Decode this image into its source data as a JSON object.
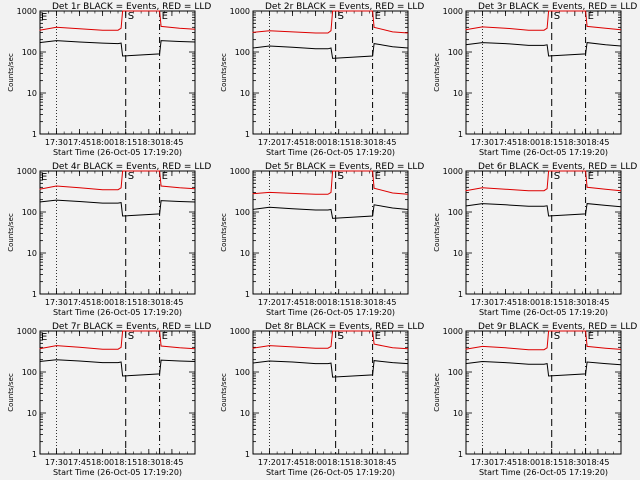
{
  "chart_data": [
    {
      "type": "line",
      "title": "Det 1r BLACK = Events, RED = LLD",
      "xlabel": "Start Time (26-Oct-05 17:19:20)",
      "ylabel": "Counts/sec",
      "ylim": [
        1,
        1000
      ],
      "y_scale": "log",
      "y_ticks": [
        "1",
        "10",
        "100",
        "1000"
      ],
      "x_ticks": [
        "17:30",
        "17:45",
        "18:00",
        "18:15",
        "18:30",
        "18:45"
      ],
      "markers": {
        "S": "18:15",
        "E": "18:37"
      },
      "begin_marker": "E",
      "x": [
        "17:19",
        "17:30",
        "17:45",
        "18:00",
        "18:10",
        "18:12",
        "18:13",
        "18:37",
        "18:38",
        "18:50",
        "19:00"
      ],
      "series": [
        {
          "color": "#dd0000",
          "values": [
            340,
            400,
            370,
            340,
            340,
            380,
            1000,
            1000,
            420,
            380,
            360
          ]
        },
        {
          "color": "#000000",
          "values": [
            170,
            190,
            175,
            165,
            160,
            165,
            80,
            90,
            190,
            180,
            175
          ]
        }
      ]
    },
    {
      "type": "line",
      "title": "Det 2r BLACK = Events, RED = LLD",
      "xlabel": "Start Time (26-Oct-05 17:19:20)",
      "ylabel": "Counts/sec",
      "ylim": [
        1,
        1000
      ],
      "y_scale": "log",
      "y_ticks": [
        "1",
        "10",
        "100",
        "1000"
      ],
      "x_ticks": [
        "17:20",
        "17:45",
        "18:00",
        "18:15",
        "18:30",
        "18:45"
      ],
      "markers": {
        "S": "18:13",
        "E": "18:37"
      },
      "begin_marker": "",
      "x": [
        "17:19",
        "17:30",
        "17:45",
        "18:00",
        "18:08",
        "18:10",
        "18:11",
        "18:37",
        "18:38",
        "18:50",
        "19:00"
      ],
      "series": [
        {
          "color": "#dd0000",
          "values": [
            300,
            330,
            310,
            290,
            290,
            330,
            1000,
            1000,
            400,
            310,
            290
          ]
        },
        {
          "color": "#000000",
          "values": [
            125,
            140,
            130,
            120,
            120,
            125,
            70,
            80,
            160,
            135,
            125
          ]
        }
      ]
    },
    {
      "type": "line",
      "title": "Det 3r BLACK = Events, RED = LLD",
      "xlabel": "Start Time (26-Oct-05 17:19:20)",
      "ylabel": "Counts/sec",
      "ylim": [
        1,
        1000
      ],
      "y_scale": "log",
      "y_ticks": [
        "1",
        "10",
        "100",
        "1000"
      ],
      "x_ticks": [
        "17:30",
        "17:45",
        "18:00",
        "18:15",
        "18:30",
        "18:45"
      ],
      "markers": {
        "S": "18:15",
        "E": "18:37"
      },
      "begin_marker": "",
      "x": [
        "17:19",
        "17:30",
        "17:45",
        "18:00",
        "18:10",
        "18:12",
        "18:13",
        "18:37",
        "18:38",
        "18:50",
        "19:00"
      ],
      "series": [
        {
          "color": "#dd0000",
          "values": [
            350,
            410,
            380,
            340,
            340,
            380,
            1000,
            1000,
            420,
            380,
            350
          ]
        },
        {
          "color": "#000000",
          "values": [
            150,
            170,
            160,
            145,
            145,
            150,
            80,
            90,
            170,
            150,
            140
          ]
        }
      ]
    },
    {
      "type": "line",
      "title": "Det 4r BLACK = Events, RED = LLD",
      "xlabel": "Start Time (26-Oct-05 17:19:20)",
      "ylabel": "Counts/sec",
      "ylim": [
        1,
        1000
      ],
      "y_scale": "log",
      "y_ticks": [
        "1",
        "10",
        "100",
        "1000"
      ],
      "x_ticks": [
        "17:30",
        "17:45",
        "18:00",
        "18:15",
        "18:30",
        "18:45"
      ],
      "markers": {
        "S": "18:15",
        "E": "18:37"
      },
      "begin_marker": "E",
      "x": [
        "17:19",
        "17:30",
        "17:45",
        "18:00",
        "18:10",
        "18:12",
        "18:13",
        "18:37",
        "18:38",
        "18:50",
        "19:00"
      ],
      "series": [
        {
          "color": "#dd0000",
          "values": [
            360,
            430,
            390,
            350,
            350,
            390,
            1000,
            1000,
            430,
            390,
            370
          ]
        },
        {
          "color": "#000000",
          "values": [
            175,
            195,
            180,
            165,
            165,
            170,
            80,
            90,
            190,
            180,
            175
          ]
        }
      ]
    },
    {
      "type": "line",
      "title": "Det 5r BLACK = Events, RED = LLD",
      "xlabel": "Start Time (26-Oct-05 17:19:20)",
      "ylabel": "Counts/sec",
      "ylim": [
        1,
        1000
      ],
      "y_scale": "log",
      "y_ticks": [
        "1",
        "10",
        "100",
        "1000"
      ],
      "x_ticks": [
        "17:20",
        "17:45",
        "18:00",
        "18:15",
        "18:30",
        "18:45"
      ],
      "markers": {
        "S": "18:13",
        "E": "18:37"
      },
      "begin_marker": "",
      "x": [
        "17:19",
        "17:30",
        "17:45",
        "18:00",
        "18:08",
        "18:10",
        "18:11",
        "18:37",
        "18:38",
        "18:50",
        "19:00"
      ],
      "series": [
        {
          "color": "#dd0000",
          "values": [
            280,
            300,
            285,
            270,
            270,
            300,
            1000,
            1000,
            380,
            290,
            270
          ]
        },
        {
          "color": "#000000",
          "values": [
            115,
            130,
            120,
            112,
            112,
            115,
            70,
            80,
            150,
            125,
            115
          ]
        }
      ]
    },
    {
      "type": "line",
      "title": "Det 6r BLACK = Events, RED = LLD",
      "xlabel": "Start Time (26-Oct-05 17:19:20)",
      "ylabel": "Counts/sec",
      "ylim": [
        1,
        1000
      ],
      "y_scale": "log",
      "y_ticks": [
        "1",
        "10",
        "100",
        "1000"
      ],
      "x_ticks": [
        "17:30",
        "17:45",
        "18:00",
        "18:15",
        "18:30",
        "18:45"
      ],
      "markers": {
        "S": "18:15",
        "E": "18:37"
      },
      "begin_marker": "",
      "x": [
        "17:19",
        "17:30",
        "17:45",
        "18:00",
        "18:10",
        "18:12",
        "18:13",
        "18:37",
        "18:38",
        "18:50",
        "19:00"
      ],
      "series": [
        {
          "color": "#dd0000",
          "values": [
            330,
            390,
            360,
            330,
            330,
            370,
            1000,
            1000,
            400,
            360,
            330
          ]
        },
        {
          "color": "#000000",
          "values": [
            140,
            160,
            150,
            138,
            138,
            142,
            80,
            90,
            160,
            145,
            135
          ]
        }
      ]
    },
    {
      "type": "line",
      "title": "Det 7r BLACK = Events, RED = LLD",
      "xlabel": "Start Time (26-Oct-05 17:19:20)",
      "ylabel": "Counts/sec",
      "ylim": [
        1,
        1000
      ],
      "y_scale": "log",
      "y_ticks": [
        "1",
        "10",
        "100",
        "1000"
      ],
      "x_ticks": [
        "17:30",
        "17:45",
        "18:00",
        "18:15",
        "18:30",
        "18:45"
      ],
      "markers": {
        "S": "18:15",
        "E": "18:37"
      },
      "begin_marker": "E",
      "x": [
        "17:19",
        "17:30",
        "17:45",
        "18:00",
        "18:10",
        "18:12",
        "18:13",
        "18:37",
        "18:38",
        "18:50",
        "19:00"
      ],
      "series": [
        {
          "color": "#dd0000",
          "values": [
            370,
            440,
            400,
            360,
            360,
            400,
            1000,
            1000,
            430,
            390,
            370
          ]
        },
        {
          "color": "#000000",
          "values": [
            180,
            200,
            185,
            170,
            170,
            175,
            80,
            90,
            195,
            185,
            180
          ]
        }
      ]
    },
    {
      "type": "line",
      "title": "Det 8r BLACK = Events, RED = LLD",
      "xlabel": "Start Time (26-Oct-05 17:19:20)",
      "ylabel": "Counts/sec",
      "ylim": [
        1,
        1000
      ],
      "y_scale": "log",
      "y_ticks": [
        "1",
        "10",
        "100",
        "1000"
      ],
      "x_ticks": [
        "17:20",
        "17:45",
        "18:00",
        "18:15",
        "18:30",
        "18:45"
      ],
      "markers": {
        "S": "18:13",
        "E": "18:37"
      },
      "begin_marker": "",
      "x": [
        "17:19",
        "17:30",
        "17:45",
        "18:00",
        "18:08",
        "18:10",
        "18:11",
        "18:37",
        "18:38",
        "18:50",
        "19:00"
      ],
      "series": [
        {
          "color": "#dd0000",
          "values": [
            380,
            440,
            410,
            380,
            380,
            420,
            1000,
            1000,
            480,
            390,
            370
          ]
        },
        {
          "color": "#000000",
          "values": [
            165,
            185,
            175,
            160,
            160,
            165,
            75,
            85,
            190,
            170,
            160
          ]
        }
      ]
    },
    {
      "type": "line",
      "title": "Det 9r BLACK = Events, RED = LLD",
      "xlabel": "Start Time (26-Oct-05 17:19:20)",
      "ylabel": "Counts/sec",
      "ylim": [
        1,
        1000
      ],
      "y_scale": "log",
      "y_ticks": [
        "1",
        "10",
        "100",
        "1000"
      ],
      "x_ticks": [
        "17:30",
        "17:45",
        "18:00",
        "18:15",
        "18:30",
        "18:45"
      ],
      "markers": {
        "S": "18:15",
        "E": "18:37"
      },
      "begin_marker": "",
      "x": [
        "17:19",
        "17:30",
        "17:45",
        "18:00",
        "18:10",
        "18:12",
        "18:13",
        "18:37",
        "18:38",
        "18:50",
        "19:00"
      ],
      "series": [
        {
          "color": "#dd0000",
          "values": [
            360,
            420,
            390,
            350,
            350,
            390,
            1000,
            1000,
            420,
            380,
            355
          ]
        },
        {
          "color": "#000000",
          "values": [
            160,
            180,
            170,
            155,
            155,
            160,
            80,
            90,
            175,
            160,
            150
          ]
        }
      ]
    }
  ]
}
